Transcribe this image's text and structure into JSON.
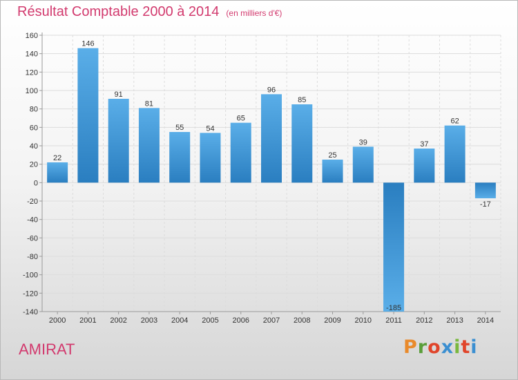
{
  "header": {
    "title": "Résultat Comptable 2000 à 2014",
    "subtitle": "(en milliers d'€)"
  },
  "footer": {
    "commune": "AMIRAT",
    "brand": "Proxiti"
  },
  "colors": {
    "title": "#d23a6e",
    "bar_light": "#5aaee8",
    "bar_dark": "#2a7ec0",
    "brand_letters": [
      "#e98a2b",
      "#5a9e3a",
      "#e0452b",
      "#3b8fd1",
      "#7ab83f",
      "#e0452b",
      "#3b8fd1"
    ]
  },
  "chart_data": {
    "type": "bar",
    "categories": [
      "2000",
      "2001",
      "2002",
      "2003",
      "2004",
      "2005",
      "2006",
      "2007",
      "2008",
      "2009",
      "2010",
      "2011",
      "2012",
      "2013",
      "2014"
    ],
    "values": [
      22,
      146,
      91,
      81,
      55,
      54,
      65,
      96,
      85,
      25,
      39,
      -185,
      37,
      62,
      -17
    ],
    "data_labels": [
      "22",
      "146",
      "91",
      "81",
      "55",
      "54",
      "65",
      "96",
      "85",
      "25",
      "39",
      "-185",
      "37",
      "62",
      "-17"
    ],
    "ylim": [
      -140,
      160
    ],
    "yticks": [
      -140,
      -120,
      -100,
      -80,
      -60,
      -40,
      -20,
      0,
      20,
      40,
      60,
      80,
      100,
      120,
      140,
      160
    ],
    "ytick_labels": [
      "-140",
      "-120",
      "-100",
      "-80",
      "-60",
      "-40",
      "-20",
      "0",
      "20",
      "40",
      "60",
      "80",
      "100",
      "120",
      "140",
      "160"
    ],
    "grid": true
  }
}
